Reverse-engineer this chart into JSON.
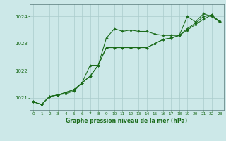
{
  "title": "Graphe pression niveau de la mer (hPa)",
  "bg_color": "#cce8e8",
  "grid_color": "#aacccc",
  "line_color": "#1a6b1a",
  "marker_color": "#1a6b1a",
  "xlim": [
    -0.5,
    23.5
  ],
  "ylim": [
    1020.55,
    1024.45
  ],
  "yticks": [
    1021,
    1022,
    1023,
    1024
  ],
  "xticks": [
    0,
    1,
    2,
    3,
    4,
    5,
    6,
    7,
    8,
    9,
    10,
    11,
    12,
    13,
    14,
    15,
    16,
    17,
    18,
    19,
    20,
    21,
    22,
    23
  ],
  "series": [
    [
      1020.85,
      1020.75,
      1021.05,
      1021.1,
      1021.15,
      1021.25,
      1021.55,
      1022.2,
      1022.2,
      1023.2,
      1023.55,
      1023.45,
      1023.5,
      1023.45,
      1023.45,
      1023.35,
      1023.3,
      1023.3,
      1023.3,
      1024.0,
      1023.8,
      1024.1,
      1024.0,
      1023.8
    ],
    [
      1020.85,
      1020.75,
      1021.05,
      1021.1,
      1021.2,
      1021.3,
      1021.55,
      1021.8,
      1022.2,
      1022.85,
      1022.85,
      1022.85,
      1022.85,
      1022.85,
      1022.85,
      1023.0,
      1023.15,
      1023.2,
      1023.3,
      1023.5,
      1023.7,
      1023.9,
      1024.05,
      1023.8
    ],
    [
      1020.85,
      1020.75,
      1021.05,
      1021.1,
      1021.2,
      1021.3,
      1021.55,
      1021.8,
      1022.2,
      1022.85,
      1022.85,
      1022.85,
      1022.85,
      1022.85,
      1022.85,
      1023.0,
      1023.15,
      1023.2,
      1023.3,
      1023.55,
      1023.75,
      1024.0,
      1024.05,
      1023.82
    ]
  ]
}
